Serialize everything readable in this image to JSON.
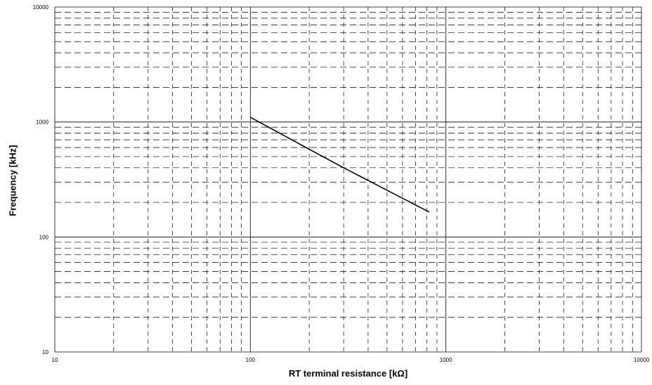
{
  "chart_data": {
    "type": "line",
    "xlabel": "RT terminal resistance [kΩ]",
    "ylabel": "Frequency [kHz]",
    "xscale": "log",
    "yscale": "log",
    "xlim": [
      10,
      10000
    ],
    "ylim": [
      10,
      10000
    ],
    "grid": true,
    "x_tick_labels": [
      "10",
      "100",
      "1000",
      "10000"
    ],
    "y_tick_labels": [
      "10",
      "100",
      "1000",
      "10000"
    ],
    "series": [
      {
        "x": [
          100,
          200,
          300,
          500,
          820
        ],
        "y": [
          1100,
          580,
          400,
          255,
          165
        ]
      }
    ]
  }
}
